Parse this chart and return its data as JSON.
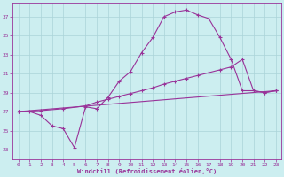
{
  "background_color": "#cceef0",
  "grid_color": "#aad4d8",
  "line_color": "#993399",
  "xlabel": "Windchill (Refroidissement éolien,°C)",
  "xlim": [
    -0.5,
    23.5
  ],
  "ylim": [
    22.0,
    38.5
  ],
  "yticks": [
    23,
    25,
    27,
    29,
    31,
    33,
    35,
    37
  ],
  "xticks": [
    0,
    1,
    2,
    3,
    4,
    5,
    6,
    7,
    8,
    9,
    10,
    11,
    12,
    13,
    14,
    15,
    16,
    17,
    18,
    19,
    20,
    21,
    22,
    23
  ],
  "line1_x": [
    0,
    1,
    2,
    3,
    4,
    5,
    6,
    7,
    8,
    9,
    10,
    11,
    12,
    13,
    14,
    15,
    16,
    17,
    18,
    19,
    20,
    21,
    22,
    23
  ],
  "line1_y": [
    27.0,
    27.0,
    26.6,
    25.5,
    25.2,
    23.2,
    27.5,
    27.3,
    28.5,
    30.2,
    31.2,
    33.2,
    34.8,
    37.0,
    37.5,
    37.7,
    37.2,
    36.8,
    34.8,
    32.5,
    29.2,
    29.2,
    29.0,
    29.2
  ],
  "line2_x": [
    0,
    2,
    4,
    6,
    7,
    8,
    9,
    10,
    11,
    12,
    13,
    14,
    15,
    16,
    17,
    18,
    19,
    20,
    21,
    22,
    23
  ],
  "line2_y": [
    27.0,
    27.1,
    27.3,
    27.6,
    28.0,
    28.3,
    28.6,
    28.9,
    29.2,
    29.5,
    29.9,
    30.2,
    30.5,
    30.8,
    31.1,
    31.4,
    31.7,
    32.5,
    29.2,
    29.0,
    29.2
  ],
  "line3_x": [
    0,
    23
  ],
  "line3_y": [
    27.0,
    29.2
  ],
  "marker": "+"
}
